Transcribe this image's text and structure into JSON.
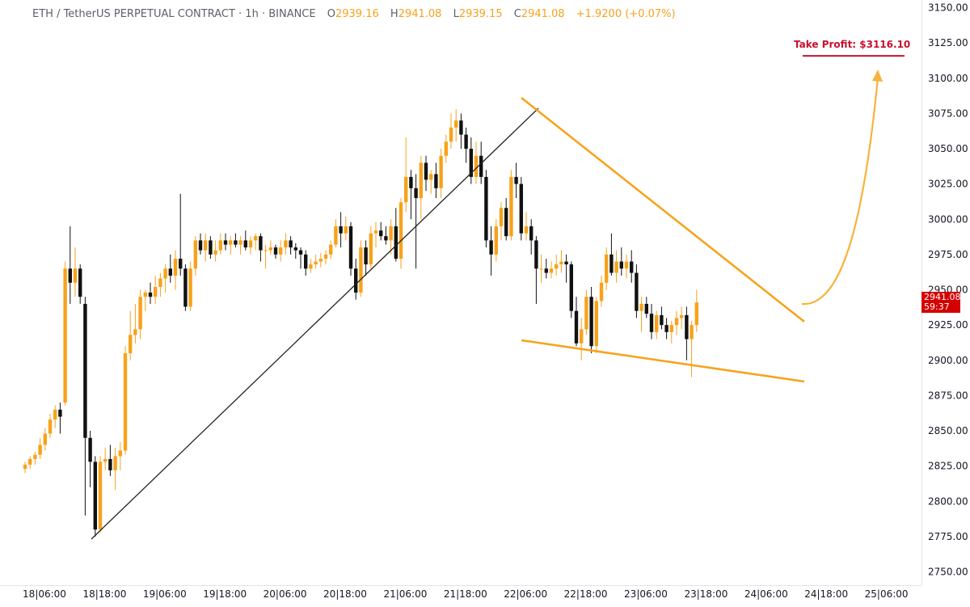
{
  "header": {
    "symbol": "ETH / TetherUS PERPETUAL CONTRACT · 1h · BINANCE",
    "o_label": "O",
    "o_value": "2939.16",
    "h_label": "H",
    "h_value": "2941.08",
    "l_label": "L",
    "l_value": "2939.15",
    "c_label": "C",
    "c_value": "2941.08",
    "change": "+1.9200 (+0.07%)"
  },
  "annotation": {
    "take_profit": "Take Profit: $3116.10"
  },
  "last_price": {
    "price": "2941.08",
    "countdown": "59:37"
  },
  "colors": {
    "up": "#f7a21b",
    "down": "#111111",
    "trend_orange": "#f7a21b",
    "trend_black": "#222222",
    "take_profit": "#c8102e",
    "price_tag": "#d40000"
  },
  "chart_data": {
    "type": "candlestick",
    "interval": "1h",
    "x_axis_labels": [
      "18|06:00",
      "18|18:00",
      "19|06:00",
      "19|18:00",
      "20|06:00",
      "20|18:00",
      "21|06:00",
      "21|18:00",
      "22|06:00",
      "22|18:00",
      "23|06:00",
      "23|18:00",
      "24|06:00",
      "24|18:00",
      "25|06:00"
    ],
    "y_ticks": [
      2750,
      2775,
      2800,
      2825,
      2850,
      2875,
      2900,
      2925,
      2950,
      2975,
      3000,
      3025,
      3050,
      3075,
      3100,
      3125,
      3150
    ],
    "ylim": [
      2745,
      3152
    ],
    "first_time": "18|02:00",
    "take_profit_level": 3116.1,
    "candles": [
      [
        2823,
        2828,
        2820,
        2826
      ],
      [
        2826,
        2832,
        2823,
        2830
      ],
      [
        2830,
        2835,
        2826,
        2833
      ],
      [
        2833,
        2845,
        2830,
        2840
      ],
      [
        2840,
        2852,
        2836,
        2848
      ],
      [
        2848,
        2862,
        2845,
        2858
      ],
      [
        2858,
        2868,
        2852,
        2865
      ],
      [
        2865,
        2870,
        2848,
        2860
      ],
      [
        2870,
        2970,
        2868,
        2965
      ],
      [
        2965,
        2995,
        2940,
        2955
      ],
      [
        2955,
        2980,
        2945,
        2965
      ],
      [
        2965,
        2968,
        2940,
        2945
      ],
      [
        2940,
        2945,
        2790,
        2845
      ],
      [
        2845,
        2850,
        2810,
        2828
      ],
      [
        2828,
        2832,
        2775,
        2780
      ],
      [
        2780,
        2832,
        2778,
        2828
      ],
      [
        2828,
        2838,
        2822,
        2830
      ],
      [
        2830,
        2840,
        2818,
        2822
      ],
      [
        2822,
        2838,
        2808,
        2832
      ],
      [
        2832,
        2842,
        2822,
        2836
      ],
      [
        2836,
        2910,
        2833,
        2905
      ],
      [
        2905,
        2935,
        2900,
        2918
      ],
      [
        2918,
        2940,
        2912,
        2922
      ],
      [
        2922,
        2950,
        2915,
        2945
      ],
      [
        2945,
        2950,
        2935,
        2948
      ],
      [
        2948,
        2955,
        2940,
        2945
      ],
      [
        2945,
        2960,
        2940,
        2952
      ],
      [
        2952,
        2962,
        2945,
        2958
      ],
      [
        2958,
        2968,
        2948,
        2965
      ],
      [
        2965,
        2975,
        2955,
        2960
      ],
      [
        2960,
        2978,
        2950,
        2972
      ],
      [
        2972,
        3018,
        2960,
        2965
      ],
      [
        2965,
        2968,
        2935,
        2938
      ],
      [
        2938,
        2970,
        2935,
        2965
      ],
      [
        2965,
        2988,
        2960,
        2985
      ],
      [
        2985,
        2990,
        2975,
        2978
      ],
      [
        2978,
        2990,
        2970,
        2985
      ],
      [
        2985,
        2988,
        2972,
        2975
      ],
      [
        2975,
        2985,
        2970,
        2978
      ],
      [
        2978,
        2990,
        2975,
        2985
      ],
      [
        2985,
        2990,
        2978,
        2982
      ],
      [
        2982,
        2988,
        2975,
        2985
      ],
      [
        2985,
        2990,
        2980,
        2982
      ],
      [
        2982,
        2988,
        2975,
        2985
      ],
      [
        2985,
        2992,
        2978,
        2980
      ],
      [
        2980,
        2988,
        2975,
        2985
      ],
      [
        2985,
        2990,
        2978,
        2988
      ],
      [
        2988,
        2990,
        2970,
        2978
      ],
      [
        2978,
        2982,
        2965,
        2978
      ],
      [
        2978,
        2985,
        2975,
        2980
      ],
      [
        2980,
        2982,
        2972,
        2975
      ],
      [
        2975,
        2985,
        2970,
        2980
      ],
      [
        2980,
        2990,
        2975,
        2985
      ],
      [
        2985,
        2988,
        2975,
        2980
      ],
      [
        2980,
        2983,
        2972,
        2978
      ],
      [
        2978,
        2980,
        2965,
        2975
      ],
      [
        2975,
        2978,
        2960,
        2965
      ],
      [
        2965,
        2972,
        2962,
        2968
      ],
      [
        2968,
        2975,
        2965,
        2970
      ],
      [
        2970,
        2976,
        2966,
        2972
      ],
      [
        2972,
        2978,
        2968,
        2975
      ],
      [
        2975,
        2985,
        2972,
        2982
      ],
      [
        2982,
        3000,
        2980,
        2995
      ],
      [
        2995,
        3005,
        2980,
        2990
      ],
      [
        2990,
        3002,
        2985,
        2995
      ],
      [
        2995,
        2998,
        2960,
        2965
      ],
      [
        2965,
        2972,
        2943,
        2948
      ],
      [
        2948,
        2985,
        2945,
        2980
      ],
      [
        2980,
        2985,
        2960,
        2968
      ],
      [
        2968,
        2995,
        2965,
        2990
      ],
      [
        2990,
        2998,
        2980,
        2992
      ],
      [
        2992,
        2998,
        2985,
        2988
      ],
      [
        2988,
        2995,
        2982,
        2985
      ],
      [
        2985,
        3000,
        2975,
        2995
      ],
      [
        2995,
        3008,
        2970,
        2972
      ],
      [
        2972,
        3015,
        2965,
        3012
      ],
      [
        3012,
        3058,
        3005,
        3030
      ],
      [
        3030,
        3035,
        3000,
        3022
      ],
      [
        3022,
        3032,
        2965,
        3015
      ],
      [
        3015,
        3045,
        3000,
        3040
      ],
      [
        3040,
        3045,
        3020,
        3028
      ],
      [
        3028,
        3035,
        3018,
        3032
      ],
      [
        3032,
        3040,
        3015,
        3022
      ],
      [
        3022,
        3050,
        3015,
        3045
      ],
      [
        3045,
        3060,
        3040,
        3055
      ],
      [
        3055,
        3075,
        3050,
        3065
      ],
      [
        3065,
        3078,
        3055,
        3070
      ],
      [
        3070,
        3075,
        3050,
        3060
      ],
      [
        3060,
        3065,
        3040,
        3050
      ],
      [
        3050,
        3058,
        3025,
        3030
      ],
      [
        3030,
        3055,
        3025,
        3045
      ],
      [
        3045,
        3055,
        3025,
        3030
      ],
      [
        3030,
        3035,
        2980,
        2985
      ],
      [
        2985,
        2995,
        2960,
        2975
      ],
      [
        2975,
        3000,
        2970,
        2995
      ],
      [
        2995,
        3012,
        2985,
        3008
      ],
      [
        3008,
        3015,
        2985,
        2988
      ],
      [
        2988,
        3035,
        2985,
        3030
      ],
      [
        3030,
        3040,
        3015,
        3025
      ],
      [
        3025,
        3030,
        2985,
        2990
      ],
      [
        2990,
        3005,
        2985,
        2995
      ],
      [
        2995,
        3000,
        2975,
        2985
      ],
      [
        2985,
        2988,
        2940,
        2965
      ],
      [
        2965,
        2975,
        2955,
        2965
      ],
      [
        2965,
        2972,
        2958,
        2962
      ],
      [
        2962,
        2970,
        2958,
        2965
      ],
      [
        2965,
        2975,
        2960,
        2968
      ],
      [
        2968,
        2978,
        2962,
        2970
      ],
      [
        2970,
        2975,
        2955,
        2968
      ],
      [
        2968,
        2970,
        2930,
        2935
      ],
      [
        2935,
        2945,
        2910,
        2912
      ],
      [
        2912,
        2930,
        2900,
        2922
      ],
      [
        2922,
        2950,
        2918,
        2945
      ],
      [
        2945,
        2952,
        2905,
        2910
      ],
      [
        2910,
        2945,
        2905,
        2942
      ],
      [
        2942,
        2960,
        2938,
        2955
      ],
      [
        2955,
        2980,
        2950,
        2975
      ],
      [
        2975,
        2990,
        2960,
        2962
      ],
      [
        2962,
        2978,
        2955,
        2970
      ],
      [
        2970,
        2980,
        2960,
        2965
      ],
      [
        2965,
        2975,
        2958,
        2970
      ],
      [
        2970,
        2978,
        2955,
        2962
      ],
      [
        2962,
        2968,
        2930,
        2935
      ],
      [
        2935,
        2945,
        2920,
        2940
      ],
      [
        2940,
        2945,
        2930,
        2933
      ],
      [
        2933,
        2940,
        2915,
        2920
      ],
      [
        2920,
        2935,
        2915,
        2932
      ],
      [
        2932,
        2938,
        2922,
        2925
      ],
      [
        2925,
        2930,
        2915,
        2920
      ],
      [
        2920,
        2928,
        2912,
        2925
      ],
      [
        2925,
        2935,
        2918,
        2930
      ],
      [
        2930,
        2938,
        2922,
        2932
      ],
      [
        2932,
        2938,
        2900,
        2915
      ],
      [
        2915,
        2928,
        2888,
        2925
      ],
      [
        2925,
        2950,
        2920,
        2941
      ]
    ]
  }
}
